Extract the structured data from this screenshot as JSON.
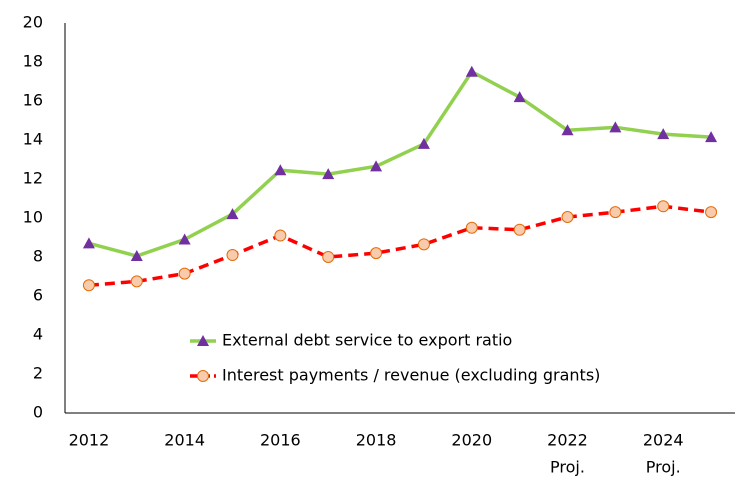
{
  "chart_data": {
    "type": "line",
    "categories": [
      "2012",
      null,
      "2014",
      null,
      "2016",
      null,
      "2018",
      null,
      "2020",
      null,
      "2022",
      null,
      "2024",
      null
    ],
    "x_sublabels": [
      null,
      null,
      null,
      null,
      null,
      null,
      null,
      null,
      null,
      null,
      "Proj.",
      null,
      "Proj.",
      null
    ],
    "series": [
      {
        "name": "External debt service to export ratio",
        "color": "#92d050",
        "marker": "triangle",
        "marker_color": "#7030a0",
        "values": [
          8.7,
          8.05,
          8.9,
          10.2,
          12.45,
          12.25,
          12.65,
          13.8,
          17.5,
          16.2,
          14.5,
          14.65,
          14.3,
          14.15
        ]
      },
      {
        "name": "Interest payments / revenue (excluding grants)",
        "color": "#ff0000",
        "dashed": true,
        "marker": "circle",
        "marker_color": "#f8cbad",
        "values": [
          6.55,
          6.75,
          7.15,
          8.1,
          9.1,
          8.0,
          8.2,
          8.65,
          9.5,
          9.4,
          10.05,
          10.3,
          10.6,
          10.3
        ]
      }
    ],
    "ylim": [
      0,
      20
    ],
    "yticks": [
      0,
      2,
      4,
      6,
      8,
      10,
      12,
      14,
      16,
      18,
      20
    ],
    "grid": false
  }
}
